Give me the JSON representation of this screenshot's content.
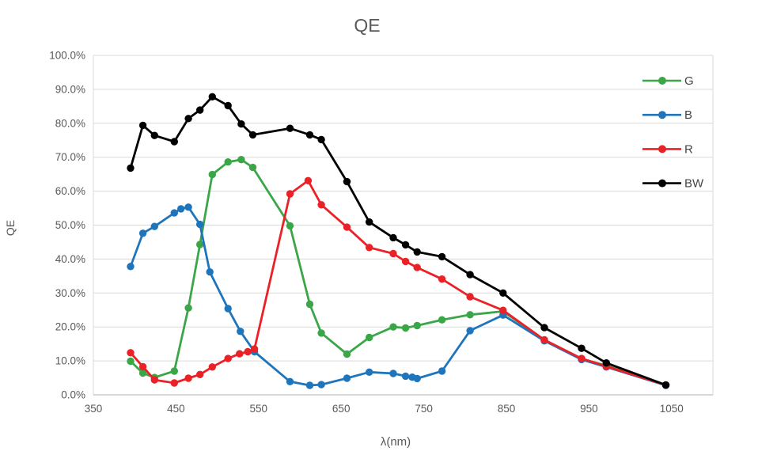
{
  "chart_data": {
    "type": "line",
    "title": "QE",
    "xlabel": "λ(nm)",
    "ylabel": "QE",
    "grid": true,
    "legend_position": "inside-top-right",
    "x_axis": {
      "min": 350,
      "max": 1100,
      "tick_values": [
        350,
        450,
        550,
        650,
        750,
        850,
        950,
        1050
      ],
      "title": "λ(nm)"
    },
    "y_axis": {
      "min": 0,
      "max": 100,
      "tick_step": 10,
      "tick_labels": [
        "100.0%",
        "90.0%",
        "80.0%",
        "70.0%",
        "60.0%",
        "50.0%",
        "40.0%",
        "30.0%",
        "20.0%",
        "10.0%",
        "0.0%"
      ],
      "tick_values": [
        100,
        90,
        80,
        70,
        60,
        50,
        40,
        30,
        20,
        10,
        0
      ],
      "title": "QE"
    },
    "series": [
      {
        "name": "G",
        "color": "#3BA648",
        "points": [
          [
            395,
            9.9
          ],
          [
            410,
            6.4
          ],
          [
            424,
            5.1
          ],
          [
            448,
            7.0
          ],
          [
            465,
            25.6
          ],
          [
            479,
            44.3
          ],
          [
            494,
            64.9
          ],
          [
            513,
            68.6
          ],
          [
            529,
            69.3
          ],
          [
            543,
            67.0
          ],
          [
            588,
            49.8
          ],
          [
            612,
            26.7
          ],
          [
            626,
            18.2
          ],
          [
            657,
            12.0
          ],
          [
            684,
            16.9
          ],
          [
            713,
            20.0
          ],
          [
            728,
            19.7
          ],
          [
            742,
            20.4
          ],
          [
            772,
            22.1
          ],
          [
            806,
            23.6
          ],
          [
            846,
            24.6
          ],
          [
            896,
            16.1
          ],
          [
            941,
            10.6
          ],
          [
            971,
            8.6
          ],
          [
            1043,
            2.9
          ]
        ]
      },
      {
        "name": "B",
        "color": "#1F75BC",
        "points": [
          [
            395,
            37.8
          ],
          [
            410,
            47.6
          ],
          [
            424,
            49.6
          ],
          [
            448,
            53.6
          ],
          [
            456,
            54.8
          ],
          [
            465,
            55.3
          ],
          [
            479,
            50.2
          ],
          [
            491,
            36.2
          ],
          [
            513,
            25.4
          ],
          [
            528,
            18.7
          ],
          [
            545,
            12.7
          ],
          [
            588,
            3.9
          ],
          [
            612,
            2.8
          ],
          [
            626,
            3.0
          ],
          [
            657,
            4.9
          ],
          [
            684,
            6.7
          ],
          [
            713,
            6.3
          ],
          [
            728,
            5.5
          ],
          [
            736,
            5.2
          ],
          [
            742,
            4.8
          ],
          [
            772,
            7.0
          ],
          [
            806,
            18.9
          ],
          [
            846,
            23.5
          ],
          [
            896,
            15.9
          ],
          [
            941,
            10.4
          ],
          [
            971,
            8.2
          ],
          [
            1043,
            2.8
          ]
        ]
      },
      {
        "name": "R",
        "color": "#EA2127",
        "points": [
          [
            395,
            12.4
          ],
          [
            410,
            8.3
          ],
          [
            424,
            4.4
          ],
          [
            448,
            3.5
          ],
          [
            465,
            4.9
          ],
          [
            479,
            6.0
          ],
          [
            494,
            8.2
          ],
          [
            513,
            10.7
          ],
          [
            527,
            12.1
          ],
          [
            537,
            12.7
          ],
          [
            545,
            13.5
          ],
          [
            588,
            59.2
          ],
          [
            610,
            63.1
          ],
          [
            626,
            56.0
          ],
          [
            657,
            49.4
          ],
          [
            684,
            43.4
          ],
          [
            713,
            41.6
          ],
          [
            728,
            39.3
          ],
          [
            742,
            37.5
          ],
          [
            772,
            34.1
          ],
          [
            806,
            28.9
          ],
          [
            846,
            24.9
          ],
          [
            896,
            16.2
          ],
          [
            941,
            10.7
          ],
          [
            971,
            8.4
          ],
          [
            1043,
            2.9
          ]
        ]
      },
      {
        "name": "BW",
        "color": "#000000",
        "points": [
          [
            395,
            66.8
          ],
          [
            410,
            79.4
          ],
          [
            424,
            76.4
          ],
          [
            448,
            74.6
          ],
          [
            465,
            81.4
          ],
          [
            479,
            83.9
          ],
          [
            494,
            87.8
          ],
          [
            513,
            85.2
          ],
          [
            529,
            79.8
          ],
          [
            543,
            76.6
          ],
          [
            588,
            78.5
          ],
          [
            612,
            76.6
          ],
          [
            626,
            75.2
          ],
          [
            657,
            62.8
          ],
          [
            684,
            50.9
          ],
          [
            713,
            46.3
          ],
          [
            728,
            44.2
          ],
          [
            742,
            42.1
          ],
          [
            772,
            40.7
          ],
          [
            806,
            35.4
          ],
          [
            846,
            30.0
          ],
          [
            896,
            19.8
          ],
          [
            941,
            13.7
          ],
          [
            971,
            9.4
          ],
          [
            1043,
            2.9
          ]
        ]
      }
    ],
    "legend": {
      "labels": [
        "G",
        "B",
        "R",
        "BW"
      ]
    }
  },
  "style": {
    "gridline_color": "#D9D9D9",
    "axis_line_color": "#BFBFBF",
    "tick_text_color": "#595959",
    "title_color": "#595959",
    "legend_text_color": "#444444",
    "background": "#FFFFFF"
  }
}
